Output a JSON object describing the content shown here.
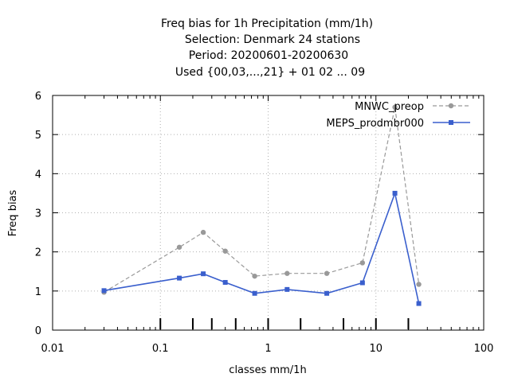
{
  "chart_data": {
    "type": "line",
    "title_lines": [
      "Freq bias  for 1h Precipitation (mm/1h)",
      "Selection: Denmark     24 stations",
      "Period: 20200601-20200630",
      "Used {00,03,...,21} + 01 02 ... 09"
    ],
    "xlabel": "classes mm/1h",
    "ylabel": "Freq bias",
    "x_scale": "log",
    "xlim": [
      0.01,
      100
    ],
    "ylim": [
      0,
      6
    ],
    "x_tick_labels": [
      "0.01",
      "0.1",
      "1",
      "10",
      "100"
    ],
    "y_tick_labels": [
      "0",
      "1",
      "2",
      "3",
      "4",
      "5",
      "6"
    ],
    "grid": true,
    "legend_position": "top-right",
    "class_marks": [
      0.1,
      0.2,
      0.3,
      0.5,
      1,
      2,
      5,
      10,
      20
    ],
    "series": [
      {
        "name": "MNWC_preop",
        "color": "#999999",
        "style": "dashed",
        "x": [
          0.03,
          0.15,
          0.25,
          0.4,
          0.75,
          1.5,
          3.5,
          7.5,
          15,
          25
        ],
        "y": [
          0.97,
          2.12,
          2.5,
          2.02,
          1.38,
          1.45,
          1.45,
          1.72,
          5.7,
          1.17
        ]
      },
      {
        "name": "MEPS_prodmbr000",
        "color": "#3a5fcd",
        "style": "solid",
        "x": [
          0.03,
          0.15,
          0.25,
          0.4,
          0.75,
          1.5,
          3.5,
          7.5,
          15,
          25
        ],
        "y": [
          1.01,
          1.33,
          1.44,
          1.22,
          0.94,
          1.04,
          0.94,
          1.21,
          3.5,
          0.68
        ]
      }
    ]
  }
}
